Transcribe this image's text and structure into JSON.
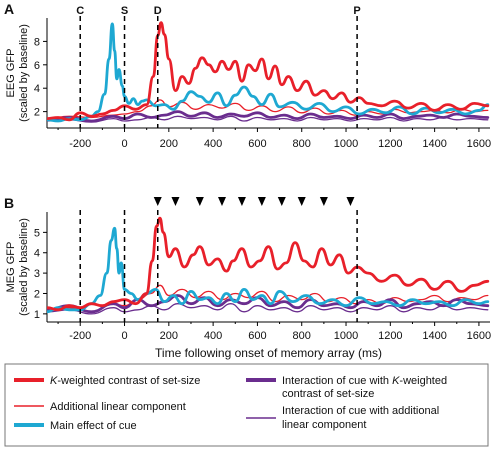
{
  "chart_data": [
    {
      "type": "line",
      "panel_label": "A",
      "ylabel_line1": "EEG GFP",
      "ylabel_line2": "(scaled by baseline)",
      "xlabel": "",
      "xlim": [
        -350,
        1650
      ],
      "ylim": [
        0.6,
        10
      ],
      "xticks": [
        -200,
        0,
        200,
        400,
        600,
        800,
        1000,
        1200,
        1400,
        1600
      ],
      "yticks": [
        2,
        4,
        6,
        8
      ],
      "markers": [
        {
          "label": "C",
          "x": -200
        },
        {
          "label": "S",
          "x": 0
        },
        {
          "label": "D",
          "x": 150
        },
        {
          "label": "P",
          "x": 1050
        }
      ],
      "series": [
        {
          "key": "linear",
          "color": "#e8202a",
          "width": 1.3,
          "x": [
            -350,
            -250,
            -150,
            -50,
            0,
            60,
            120,
            160,
            200,
            260,
            320,
            380,
            440,
            500,
            560,
            620,
            680,
            740,
            800,
            860,
            920,
            980,
            1040,
            1100,
            1160,
            1220,
            1280,
            1340,
            1400,
            1460,
            1520,
            1580,
            1640
          ],
          "y": [
            1.4,
            1.6,
            1.5,
            1.7,
            1.8,
            2.0,
            2.5,
            3.0,
            2.4,
            2.8,
            2.2,
            2.6,
            2.3,
            2.7,
            2.1,
            2.5,
            2.0,
            2.4,
            1.9,
            2.3,
            1.8,
            2.1,
            1.7,
            2.0,
            1.8,
            2.2,
            1.9,
            2.0,
            2.1,
            1.9,
            2.2,
            2.0,
            2.1
          ]
        },
        {
          "key": "interaction_linear",
          "color": "#6a2d8e",
          "width": 1.3,
          "x": [
            -350,
            -250,
            -150,
            -50,
            0,
            60,
            120,
            180,
            240,
            300,
            360,
            420,
            480,
            540,
            600,
            660,
            720,
            780,
            840,
            900,
            960,
            1020,
            1080,
            1140,
            1200,
            1260,
            1320,
            1380,
            1440,
            1500,
            1560,
            1640
          ],
          "y": [
            1.2,
            1.3,
            1.1,
            1.4,
            1.2,
            1.3,
            1.5,
            1.3,
            1.6,
            1.4,
            1.5,
            1.3,
            1.6,
            1.2,
            1.5,
            1.3,
            1.4,
            1.2,
            1.5,
            1.3,
            1.4,
            1.2,
            1.4,
            1.3,
            1.5,
            1.2,
            1.4,
            1.3,
            1.5,
            1.3,
            1.4,
            1.3
          ]
        },
        {
          "key": "interaction_k",
          "color": "#6a2d8e",
          "width": 2.8,
          "x": [
            -350,
            -250,
            -150,
            -50,
            0,
            60,
            120,
            180,
            240,
            300,
            360,
            420,
            480,
            540,
            600,
            660,
            720,
            780,
            840,
            900,
            960,
            1020,
            1080,
            1140,
            1200,
            1260,
            1320,
            1380,
            1440,
            1500,
            1560,
            1640
          ],
          "y": [
            1.3,
            1.5,
            1.2,
            1.6,
            1.4,
            1.8,
            1.5,
            1.7,
            2.0,
            1.6,
            1.9,
            1.5,
            1.8,
            1.6,
            1.9,
            1.5,
            1.7,
            1.4,
            1.8,
            1.5,
            1.6,
            1.4,
            1.7,
            1.5,
            1.8,
            1.4,
            1.6,
            1.7,
            1.5,
            1.8,
            1.6,
            1.5
          ]
        },
        {
          "key": "cue",
          "color": "#1ea8d2",
          "width": 2.8,
          "x": [
            -350,
            -300,
            -250,
            -200,
            -150,
            -120,
            -90,
            -70,
            -55,
            -45,
            -35,
            -25,
            -10,
            0,
            20,
            40,
            60,
            80,
            100,
            140,
            180,
            220,
            260,
            300,
            340,
            380,
            420,
            460,
            500,
            540,
            580,
            620,
            660,
            700,
            760,
            820,
            880,
            940,
            1000,
            1060,
            1120,
            1180,
            1240,
            1300,
            1360,
            1420,
            1480,
            1540,
            1600,
            1640
          ],
          "y": [
            1.3,
            1.2,
            1.4,
            1.3,
            1.6,
            2.0,
            3.5,
            6.5,
            9.5,
            7.2,
            4.8,
            5.6,
            4.2,
            3.3,
            2.7,
            3.1,
            2.6,
            2.9,
            3.0,
            2.5,
            2.6,
            2.2,
            2.9,
            3.7,
            3.3,
            2.8,
            3.6,
            2.5,
            3.4,
            4.1,
            3.3,
            2.6,
            3.5,
            2.4,
            2.8,
            2.2,
            2.7,
            2.0,
            2.4,
            1.8,
            2.2,
            1.9,
            2.4,
            1.8,
            2.3,
            1.9,
            2.2,
            1.8,
            2.1,
            2.6
          ]
        },
        {
          "key": "k",
          "color": "#e8202a",
          "width": 2.8,
          "x": [
            -350,
            -300,
            -250,
            -200,
            -150,
            -100,
            -50,
            0,
            50,
            100,
            130,
            150,
            165,
            180,
            200,
            230,
            260,
            290,
            320,
            350,
            380,
            410,
            440,
            470,
            500,
            530,
            560,
            590,
            620,
            650,
            680,
            710,
            740,
            780,
            820,
            860,
            900,
            940,
            980,
            1020,
            1060,
            1100,
            1160,
            1220,
            1280,
            1340,
            1400,
            1460,
            1520,
            1580,
            1640
          ],
          "y": [
            1.4,
            1.5,
            1.3,
            1.9,
            1.6,
            1.8,
            2.1,
            2.5,
            2.2,
            2.6,
            5.0,
            8.5,
            9.6,
            8.6,
            6.5,
            3.8,
            5.0,
            4.4,
            5.7,
            6.6,
            6.0,
            5.4,
            6.3,
            5.6,
            6.3,
            4.6,
            6.0,
            5.5,
            6.5,
            4.8,
            5.9,
            4.3,
            5.0,
            3.8,
            4.6,
            3.4,
            3.8,
            3.1,
            3.6,
            2.8,
            3.2,
            2.7,
            2.5,
            2.9,
            2.3,
            2.7,
            2.1,
            2.6,
            2.2,
            2.7,
            2.5
          ]
        }
      ]
    },
    {
      "type": "line",
      "panel_label": "B",
      "ylabel_line1": "MEG GFP",
      "ylabel_line2": "(scaled by baseline)",
      "xlabel": "Time following onset of memory array (ms)",
      "xlim": [
        -350,
        1650
      ],
      "ylim": [
        0.6,
        6.0
      ],
      "xticks": [
        -200,
        0,
        200,
        400,
        600,
        800,
        1000,
        1200,
        1400,
        1600
      ],
      "yticks": [
        1,
        2,
        3,
        4,
        5
      ],
      "markers": [
        {
          "label": "",
          "x": -200
        },
        {
          "label": "",
          "x": 0
        },
        {
          "label": "",
          "x": 150
        },
        {
          "label": "",
          "x": 1050
        }
      ],
      "arrowheads_x": [
        150,
        230,
        340,
        440,
        530,
        620,
        710,
        800,
        900,
        1020
      ],
      "series": [
        {
          "key": "linear",
          "color": "#e8202a",
          "width": 1.3,
          "x": [
            -350,
            -250,
            -150,
            -50,
            0,
            60,
            120,
            160,
            200,
            260,
            320,
            380,
            440,
            500,
            560,
            620,
            680,
            740,
            800,
            860,
            920,
            980,
            1040,
            1100,
            1160,
            1220,
            1280,
            1340,
            1400,
            1460,
            1520,
            1580,
            1640
          ],
          "y": [
            1.2,
            1.3,
            1.1,
            1.5,
            1.4,
            1.7,
            2.0,
            2.4,
            1.9,
            2.2,
            1.8,
            2.1,
            1.7,
            2.0,
            1.8,
            2.1,
            1.6,
            1.9,
            1.7,
            2.0,
            1.6,
            1.8,
            1.5,
            1.7,
            1.5,
            1.8,
            1.6,
            1.7,
            1.9,
            1.6,
            1.8,
            1.7,
            1.9
          ]
        },
        {
          "key": "interaction_linear",
          "color": "#6a2d8e",
          "width": 1.3,
          "x": [
            -350,
            -250,
            -150,
            -50,
            0,
            60,
            120,
            180,
            240,
            300,
            360,
            420,
            480,
            540,
            600,
            660,
            720,
            780,
            840,
            900,
            960,
            1020,
            1080,
            1140,
            1200,
            1260,
            1320,
            1380,
            1440,
            1500,
            1560,
            1640
          ],
          "y": [
            1.1,
            1.2,
            1.0,
            1.3,
            1.1,
            1.2,
            1.4,
            1.2,
            1.5,
            1.3,
            1.4,
            1.2,
            1.5,
            1.1,
            1.4,
            1.2,
            1.3,
            1.1,
            1.4,
            1.2,
            1.3,
            1.1,
            1.3,
            1.2,
            1.4,
            1.1,
            1.3,
            1.2,
            1.4,
            1.2,
            1.3,
            1.2
          ]
        },
        {
          "key": "interaction_k",
          "color": "#6a2d8e",
          "width": 2.8,
          "x": [
            -350,
            -250,
            -150,
            -50,
            0,
            60,
            120,
            180,
            240,
            300,
            360,
            420,
            480,
            540,
            600,
            660,
            720,
            780,
            840,
            900,
            960,
            1020,
            1080,
            1140,
            1200,
            1260,
            1320,
            1380,
            1440,
            1500,
            1560,
            1640
          ],
          "y": [
            1.2,
            1.4,
            1.1,
            1.5,
            1.3,
            1.7,
            1.4,
            1.6,
            1.9,
            1.5,
            1.8,
            1.4,
            1.7,
            1.5,
            1.8,
            1.4,
            1.6,
            1.3,
            1.7,
            1.4,
            1.5,
            1.3,
            1.6,
            1.4,
            1.7,
            1.3,
            1.5,
            1.6,
            1.4,
            1.7,
            1.5,
            1.4
          ]
        },
        {
          "key": "cue",
          "color": "#1ea8d2",
          "width": 2.8,
          "x": [
            -350,
            -300,
            -250,
            -200,
            -150,
            -110,
            -80,
            -60,
            -45,
            -35,
            -25,
            -15,
            0,
            30,
            60,
            100,
            140,
            180,
            220,
            260,
            300,
            340,
            380,
            420,
            460,
            500,
            540,
            580,
            620,
            660,
            700,
            760,
            820,
            880,
            940,
            1000,
            1060,
            1120,
            1180,
            1240,
            1300,
            1360,
            1420,
            1480,
            1540,
            1600,
            1640
          ],
          "y": [
            1.1,
            1.3,
            1.2,
            1.2,
            1.5,
            1.9,
            3.0,
            4.6,
            5.2,
            4.2,
            3.0,
            3.5,
            2.2,
            2.0,
            1.7,
            2.0,
            2.2,
            1.6,
            1.9,
            1.5,
            2.1,
            1.7,
            1.8,
            1.5,
            2.0,
            1.6,
            2.2,
            1.7,
            1.9,
            1.5,
            2.1,
            1.6,
            1.9,
            1.5,
            1.7,
            1.4,
            1.8,
            1.5,
            1.6,
            1.4,
            1.7,
            1.5,
            1.6,
            1.4,
            1.7,
            1.5,
            1.6
          ]
        },
        {
          "key": "k",
          "color": "#e8202a",
          "width": 2.8,
          "x": [
            -350,
            -300,
            -250,
            -200,
            -150,
            -100,
            -50,
            0,
            50,
            100,
            125,
            145,
            160,
            175,
            200,
            230,
            270,
            310,
            340,
            380,
            420,
            460,
            490,
            530,
            570,
            610,
            650,
            690,
            730,
            770,
            810,
            850,
            890,
            930,
            970,
            1010,
            1050,
            1100,
            1160,
            1220,
            1280,
            1340,
            1400,
            1460,
            1520,
            1580,
            1640
          ],
          "y": [
            1.3,
            1.2,
            1.4,
            1.3,
            1.5,
            1.4,
            1.6,
            1.7,
            1.5,
            2.0,
            3.6,
            5.3,
            5.7,
            5.0,
            3.8,
            4.2,
            3.3,
            3.9,
            4.3,
            3.4,
            3.7,
            3.1,
            3.6,
            4.2,
            3.3,
            3.6,
            4.3,
            3.2,
            3.5,
            4.5,
            3.6,
            3.3,
            4.2,
            3.4,
            3.9,
            3.0,
            3.3,
            3.0,
            2.6,
            2.9,
            2.4,
            2.7,
            2.2,
            2.6,
            2.1,
            2.4,
            2.6
          ]
        }
      ]
    }
  ],
  "legend": [
    {
      "key": "k",
      "italic_prefix": "K",
      "text": "-weighted contrast of set-size",
      "color": "#e8202a",
      "width": 4
    },
    {
      "key": "linear",
      "italic_prefix": "",
      "text": "Additional linear component",
      "color": "#e8202a",
      "width": 1.5
    },
    {
      "key": "cue",
      "italic_prefix": "",
      "text": "Main effect of cue",
      "color": "#1ea8d2",
      "width": 4
    },
    {
      "key": "interaction_k",
      "italic_prefix": "",
      "text": "Interaction of cue with ",
      "italic_mid": "K",
      "text2": "-weighted",
      "line2": "contrast of set-size",
      "color": "#6a2d8e",
      "width": 4
    },
    {
      "key": "interaction_linear",
      "italic_prefix": "",
      "text": "Interaction of cue with additional",
      "line2": "linear component",
      "color": "#6a2d8e",
      "width": 1.5
    }
  ]
}
